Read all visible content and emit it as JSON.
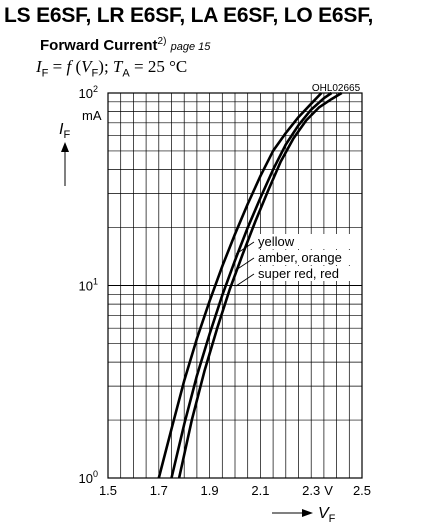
{
  "header": {
    "title": "LS E6SF, LR E6SF, LA E6SF, LO E6SF,",
    "subtitle": "Forward Current",
    "footnote_ref": "2)",
    "page_ref": "page 15",
    "relation": {
      "y_sym": "I",
      "y_sub": "F",
      "eq": " = ",
      "func": "f",
      "x_open": " (",
      "x_sym": "V",
      "x_sub": "F",
      "x_close": ");",
      "t_sym": "T",
      "t_sub": "A",
      "t_val": " = 25 °C"
    }
  },
  "chart_data": {
    "type": "line",
    "code": "OHL02665",
    "x_scale": "linear",
    "y_scale": "log",
    "xlim": [
      1.5,
      2.5
    ],
    "ylim": [
      1,
      100
    ],
    "grid": true,
    "x_ticks": [
      {
        "v": 1.5,
        "label": "1.5"
      },
      {
        "v": 1.7,
        "label": "1.7"
      },
      {
        "v": 1.9,
        "label": "1.9"
      },
      {
        "v": 2.1,
        "label": "2.1"
      },
      {
        "v": 2.3,
        "label": "2.3"
      },
      {
        "v": 2.5,
        "label": "2.5"
      }
    ],
    "x_unit": "V",
    "x_label": {
      "sym": "V",
      "sub": "F"
    },
    "y_ticks": [
      {
        "v": 1,
        "base": "10",
        "exp": "0"
      },
      {
        "v": 10,
        "base": "10",
        "exp": "1"
      },
      {
        "v": 100,
        "base": "10",
        "exp": "2"
      }
    ],
    "y_unit": "mA",
    "y_label": {
      "sym": "I",
      "sub": "F"
    },
    "series": [
      {
        "name": "yellow",
        "points": [
          [
            1.7,
            1.0
          ],
          [
            1.75,
            1.8
          ],
          [
            1.8,
            3.2
          ],
          [
            1.85,
            5.3
          ],
          [
            1.9,
            8.3
          ],
          [
            1.95,
            12.6
          ],
          [
            2.0,
            18.5
          ],
          [
            2.05,
            26.5
          ],
          [
            2.1,
            37.0
          ],
          [
            2.15,
            50.0
          ],
          [
            2.2,
            62.0
          ],
          [
            2.25,
            75.0
          ],
          [
            2.3,
            88.0
          ],
          [
            2.34,
            100.0
          ]
        ]
      },
      {
        "name": "amber, orange",
        "points": [
          [
            1.75,
            1.0
          ],
          [
            1.8,
            1.9
          ],
          [
            1.85,
            3.4
          ],
          [
            1.9,
            5.6
          ],
          [
            1.95,
            8.9
          ],
          [
            2.0,
            13.5
          ],
          [
            2.05,
            20.0
          ],
          [
            2.1,
            28.5
          ],
          [
            2.15,
            40.0
          ],
          [
            2.2,
            54.0
          ],
          [
            2.25,
            68.0
          ],
          [
            2.3,
            82.0
          ],
          [
            2.35,
            94.0
          ],
          [
            2.38,
            100.0
          ]
        ]
      },
      {
        "name": "super red, red",
        "points": [
          [
            1.78,
            1.0
          ],
          [
            1.83,
            2.0
          ],
          [
            1.88,
            3.6
          ],
          [
            1.93,
            6.0
          ],
          [
            1.98,
            9.6
          ],
          [
            2.03,
            14.5
          ],
          [
            2.08,
            21.5
          ],
          [
            2.13,
            31.0
          ],
          [
            2.18,
            44.0
          ],
          [
            2.23,
            58.0
          ],
          [
            2.28,
            72.0
          ],
          [
            2.33,
            84.0
          ],
          [
            2.38,
            93.0
          ],
          [
            2.42,
            100.0
          ]
        ]
      }
    ]
  }
}
